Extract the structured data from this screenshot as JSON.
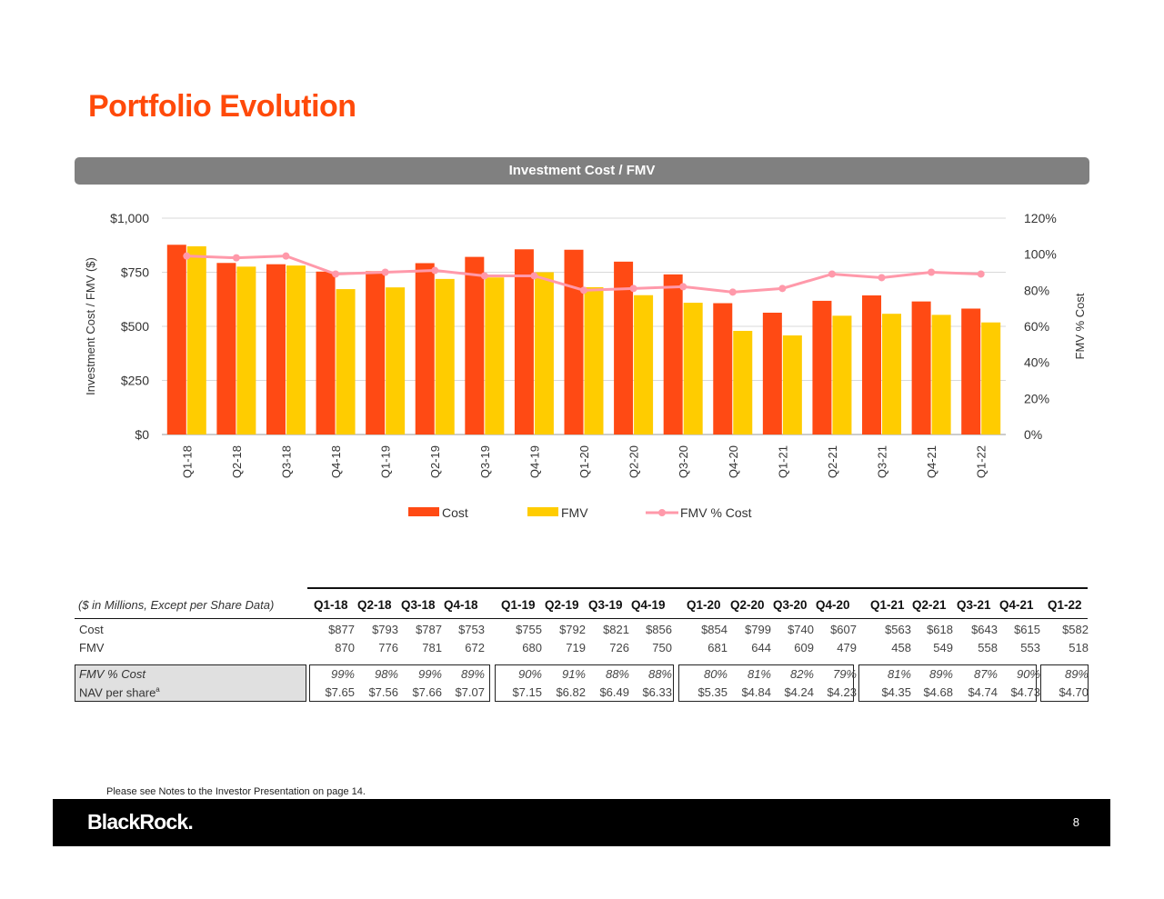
{
  "title": "Portfolio Evolution",
  "chart_header": "Investment Cost / FMV",
  "chart_data": {
    "type": "bar",
    "categories": [
      "Q1-18",
      "Q2-18",
      "Q3-18",
      "Q4-18",
      "Q1-19",
      "Q2-19",
      "Q3-19",
      "Q4-19",
      "Q1-20",
      "Q2-20",
      "Q3-20",
      "Q4-20",
      "Q1-21",
      "Q2-21",
      "Q3-21",
      "Q4-21",
      "Q1-22"
    ],
    "series": [
      {
        "name": "Cost",
        "kind": "bar",
        "color": "#ff4a14",
        "values": [
          877,
          793,
          787,
          753,
          755,
          792,
          821,
          856,
          854,
          799,
          740,
          607,
          563,
          618,
          643,
          615,
          582
        ]
      },
      {
        "name": "FMV",
        "kind": "bar",
        "color": "#ffcc00",
        "values": [
          870,
          776,
          781,
          672,
          680,
          719,
          726,
          750,
          681,
          644,
          609,
          479,
          458,
          549,
          558,
          553,
          518
        ]
      },
      {
        "name": "FMV % Cost",
        "kind": "line",
        "axis": "right",
        "color": "#ff99aa",
        "values": [
          99,
          98,
          99,
          89,
          90,
          91,
          88,
          88,
          80,
          81,
          82,
          79,
          81,
          89,
          87,
          90,
          89
        ]
      }
    ],
    "ylabel": "Investment Cost / FMV ($)",
    "ylabel_right": "FMV % Cost",
    "ylim": [
      0,
      1000
    ],
    "ylim_right": [
      0,
      120
    ],
    "yticks": [
      "$0",
      "$250",
      "$500",
      "$750",
      "$1,000"
    ],
    "yticks_right": [
      "0%",
      "20%",
      "40%",
      "60%",
      "80%",
      "100%",
      "120%"
    ],
    "grid": true,
    "legend": "bottom-center"
  },
  "table": {
    "caption": "($ in Millions, Except per Share Data)",
    "columns": [
      "Q1-18",
      "Q2-18",
      "Q3-18",
      "Q4-18",
      "Q1-19",
      "Q2-19",
      "Q3-19",
      "Q4-19",
      "Q1-20",
      "Q2-20",
      "Q3-20",
      "Q4-20",
      "Q1-21",
      "Q2-21",
      "Q3-21",
      "Q4-21",
      "Q1-22"
    ],
    "rows": [
      {
        "label": "Cost",
        "values": [
          "$877",
          "$793",
          "$787",
          "$753",
          "$755",
          "$792",
          "$821",
          "$856",
          "$854",
          "$799",
          "$740",
          "$607",
          "$563",
          "$618",
          "$643",
          "$615",
          "$582"
        ]
      },
      {
        "label": "FMV",
        "values": [
          "870",
          "776",
          "781",
          "672",
          "680",
          "719",
          "726",
          "750",
          "681",
          "644",
          "609",
          "479",
          "458",
          "549",
          "558",
          "553",
          "518"
        ]
      },
      {
        "label": "FMV % Cost",
        "values": [
          "99%",
          "98%",
          "99%",
          "89%",
          "90%",
          "91%",
          "88%",
          "88%",
          "80%",
          "81%",
          "82%",
          "79%",
          "81%",
          "89%",
          "87%",
          "90%",
          "89%"
        ]
      },
      {
        "label": "NAV per share",
        "label_sup": "a",
        "values": [
          "$7.65",
          "$7.56",
          "$7.66",
          "$7.07",
          "$7.15",
          "$6.82",
          "$6.49",
          "$6.33",
          "$5.35",
          "$4.84",
          "$4.24",
          "$4.23",
          "$4.35",
          "$4.68",
          "$4.74",
          "$4.73",
          "$4.70"
        ]
      }
    ]
  },
  "footnote": "Please see Notes to the Investor Presentation on page 14.",
  "footer": {
    "logo": "BlackRock.",
    "page": "8"
  }
}
